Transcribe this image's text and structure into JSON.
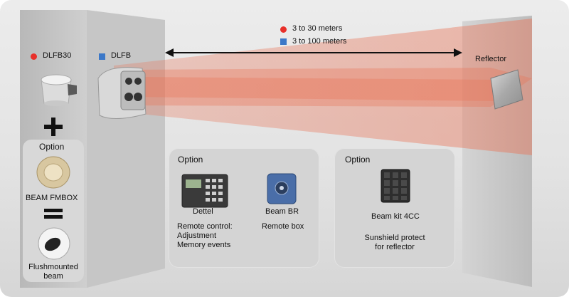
{
  "legend": {
    "red_label": "3 to 30 meters",
    "blue_label": "3 to 100 meters",
    "red_color": "#e8302a",
    "blue_color": "#3c78c8"
  },
  "left_column": {
    "dlfb30_label": "DLFB30",
    "plus_symbol": "+",
    "option_title": "Option",
    "fmbox_label": "BEAM FMBOX",
    "equals_symbol": "=",
    "flushmounted_line1": "Flushmounted",
    "flushmounted_line2": "beam"
  },
  "dlfb_label": "DLFB",
  "reflector_label": "Reflector",
  "option_box_1": {
    "title": "Option",
    "dettel_label": "Dettel",
    "beambr_label": "Beam BR",
    "remote_control_lines": [
      "Remote control:",
      "Adjustment",
      "Memory events"
    ],
    "remote_box_label": "Remote box"
  },
  "option_box_2": {
    "title": "Option",
    "beamkit_label": "Beam kit 4CC",
    "sunshield_lines": [
      "Sunshield protect",
      "for reflector"
    ]
  },
  "colors": {
    "beam": "#e8765a",
    "panel_light": "#c9c9c9",
    "panel_dark": "#bdbdbd"
  }
}
